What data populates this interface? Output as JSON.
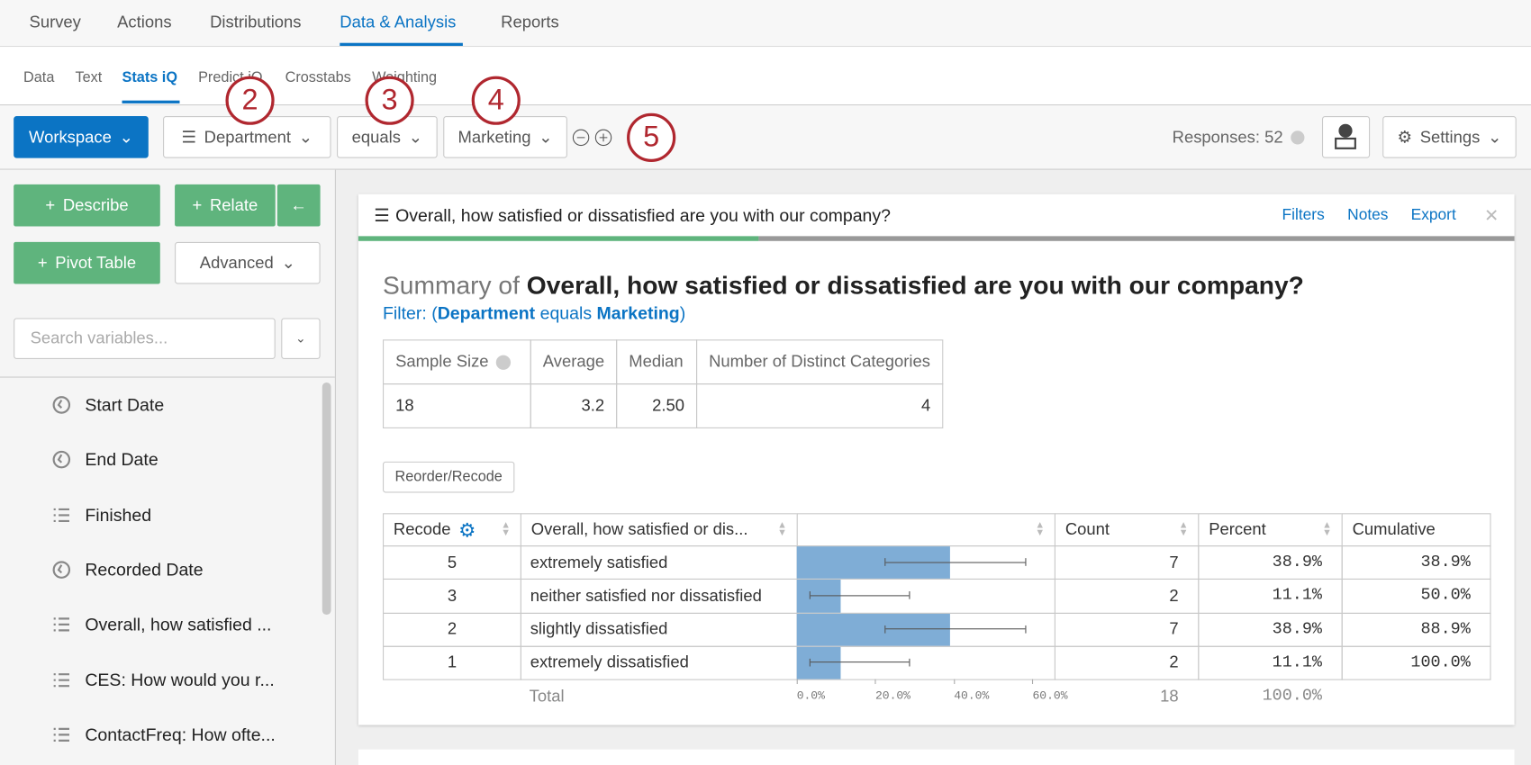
{
  "top_nav": [
    "Survey",
    "Actions",
    "Distributions",
    "Data & Analysis",
    "Reports"
  ],
  "sub_nav": [
    "Data",
    "Text",
    "Stats iQ",
    "Predict iQ",
    "Crosstabs",
    "Weighting"
  ],
  "toolbar": {
    "workspace": "Workspace",
    "filter_variable": "Department",
    "operator": "equals",
    "filter_value": "Marketing",
    "responses": "Responses: 52",
    "settings": "Settings"
  },
  "callouts": [
    "2",
    "3",
    "4",
    "5"
  ],
  "sidebar": {
    "buttons": [
      "Describe",
      "Relate",
      "Pivot Table",
      "Advanced"
    ],
    "search_placeholder": "Search variables...",
    "variables": [
      {
        "icon": "clock",
        "label": "Start Date"
      },
      {
        "icon": "clock",
        "label": "End Date"
      },
      {
        "icon": "list",
        "label": "Finished"
      },
      {
        "icon": "clock",
        "label": "Recorded Date"
      },
      {
        "icon": "ordered",
        "label": "Overall, how satisfied ..."
      },
      {
        "icon": "ordered",
        "label": "CES: How would you r..."
      },
      {
        "icon": "ordered",
        "label": "ContactFreq: How ofte..."
      }
    ]
  },
  "card": {
    "header": "Overall, how satisfied or dissatisfied are you with our company?",
    "actions": [
      "Filters",
      "Notes",
      "Export"
    ],
    "summary_prefix": "Summary of",
    "summary_title": "Overall, how satisfied or dissatisfied are you with our company?",
    "filter": {
      "prefix": "Filter: (",
      "variable": "Department",
      "operator": "equals",
      "value": "Marketing",
      "suffix": ")"
    },
    "stats": {
      "headers": [
        "Sample Size",
        "Average",
        "Median",
        "Number of Distinct Categories"
      ],
      "values": [
        18,
        3.2,
        "2.50",
        4
      ]
    },
    "reorder": "Reorder/Recode",
    "freq": {
      "headers": [
        "Recode",
        "Overall, how satisfied or dis...",
        "Count",
        "Percent",
        "Cumulative"
      ],
      "rows": [
        {
          "recode": 5,
          "label": "extremely satisfied",
          "count": 7,
          "percent": {
            "value": 38.9,
            "label": "38.9%"
          },
          "ci": [
            22.4,
            58.4
          ],
          "cumulative": "38.9%"
        },
        {
          "recode": 3,
          "label": "neither satisfied nor dissatisfied",
          "count": 2,
          "percent": {
            "value": 11.1,
            "label": "11.1%"
          },
          "ci": [
            3.2,
            28.8
          ],
          "cumulative": "50.0%"
        },
        {
          "recode": 2,
          "label": "slightly dissatisfied",
          "count": 7,
          "percent": {
            "value": 38.9,
            "label": "38.9%"
          },
          "ci": [
            22.4,
            58.4
          ],
          "cumulative": "88.9%"
        },
        {
          "recode": 1,
          "label": "extremely dissatisfied",
          "count": 2,
          "percent": {
            "value": 11.1,
            "label": "11.1%"
          },
          "ci": [
            3.2,
            28.8
          ],
          "cumulative": "100.0%"
        }
      ],
      "axis": {
        "lim": [
          0,
          65.6
        ],
        "ticks": [
          {
            "value": 0,
            "label": "0.0%"
          },
          {
            "value": 20,
            "label": "20.0%"
          },
          {
            "value": 40,
            "label": "40.0%"
          },
          {
            "value": 60,
            "label": "60.0%"
          }
        ]
      },
      "total": {
        "label": "Total",
        "count": 18,
        "percent": "100.0%"
      }
    }
  }
}
